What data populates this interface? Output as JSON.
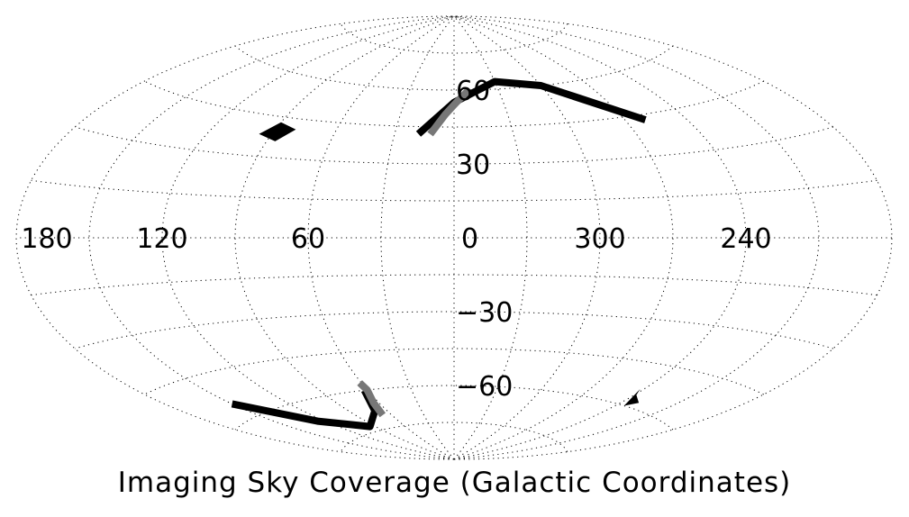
{
  "chart_data": {
    "type": "map-projection",
    "projection": "aitoff",
    "title": "Imaging Sky Coverage (Galactic Coordinates)",
    "grid": true,
    "longitude_labels": [
      {
        "l": 180,
        "text": "180"
      },
      {
        "l": 120,
        "text": "120"
      },
      {
        "l": 60,
        "text": "60"
      },
      {
        "l": 0,
        "text": "0"
      },
      {
        "l": 300,
        "text": "300"
      },
      {
        "l": 240,
        "text": "240"
      }
    ],
    "latitude_labels": [
      {
        "b": 60,
        "text": "60"
      },
      {
        "b": 30,
        "text": "30"
      },
      {
        "b": -30,
        "text": "−30"
      },
      {
        "b": -60,
        "text": "−60"
      }
    ],
    "regions": [
      {
        "kind": "stripe",
        "color": "#000000",
        "points": [
          [
            18,
            42
          ],
          [
            0,
            55
          ],
          [
            -30,
            63
          ],
          [
            -60,
            60
          ],
          [
            -85,
            50
          ],
          [
            -100,
            43
          ]
        ]
      },
      {
        "kind": "stripe",
        "color": "#777777",
        "points": [
          [
            12,
            42
          ],
          [
            5,
            50
          ],
          [
            0,
            54
          ],
          [
            -10,
            60
          ]
        ]
      },
      {
        "kind": "patch",
        "color": "#000000",
        "points": [
          [
            80,
            41
          ],
          [
            90,
            43
          ],
          [
            96,
            38
          ],
          [
            86,
            36
          ]
        ]
      },
      {
        "kind": "stripe",
        "color": "#000000",
        "points": [
          [
            150,
            -55
          ],
          [
            125,
            -67
          ],
          [
            95,
            -73
          ],
          [
            70,
            -68
          ],
          [
            62,
            -60
          ]
        ]
      },
      {
        "kind": "stripe",
        "color": "#777777",
        "points": [
          [
            68,
            -70
          ],
          [
            64,
            -65
          ],
          [
            60,
            -60
          ],
          [
            61,
            -57
          ]
        ]
      },
      {
        "kind": "patch",
        "color": "#000000",
        "points": [
          [
            -118,
            -54
          ],
          [
            -125,
            -60
          ],
          [
            -130,
            -58
          ],
          [
            -121,
            -56
          ]
        ]
      }
    ]
  }
}
